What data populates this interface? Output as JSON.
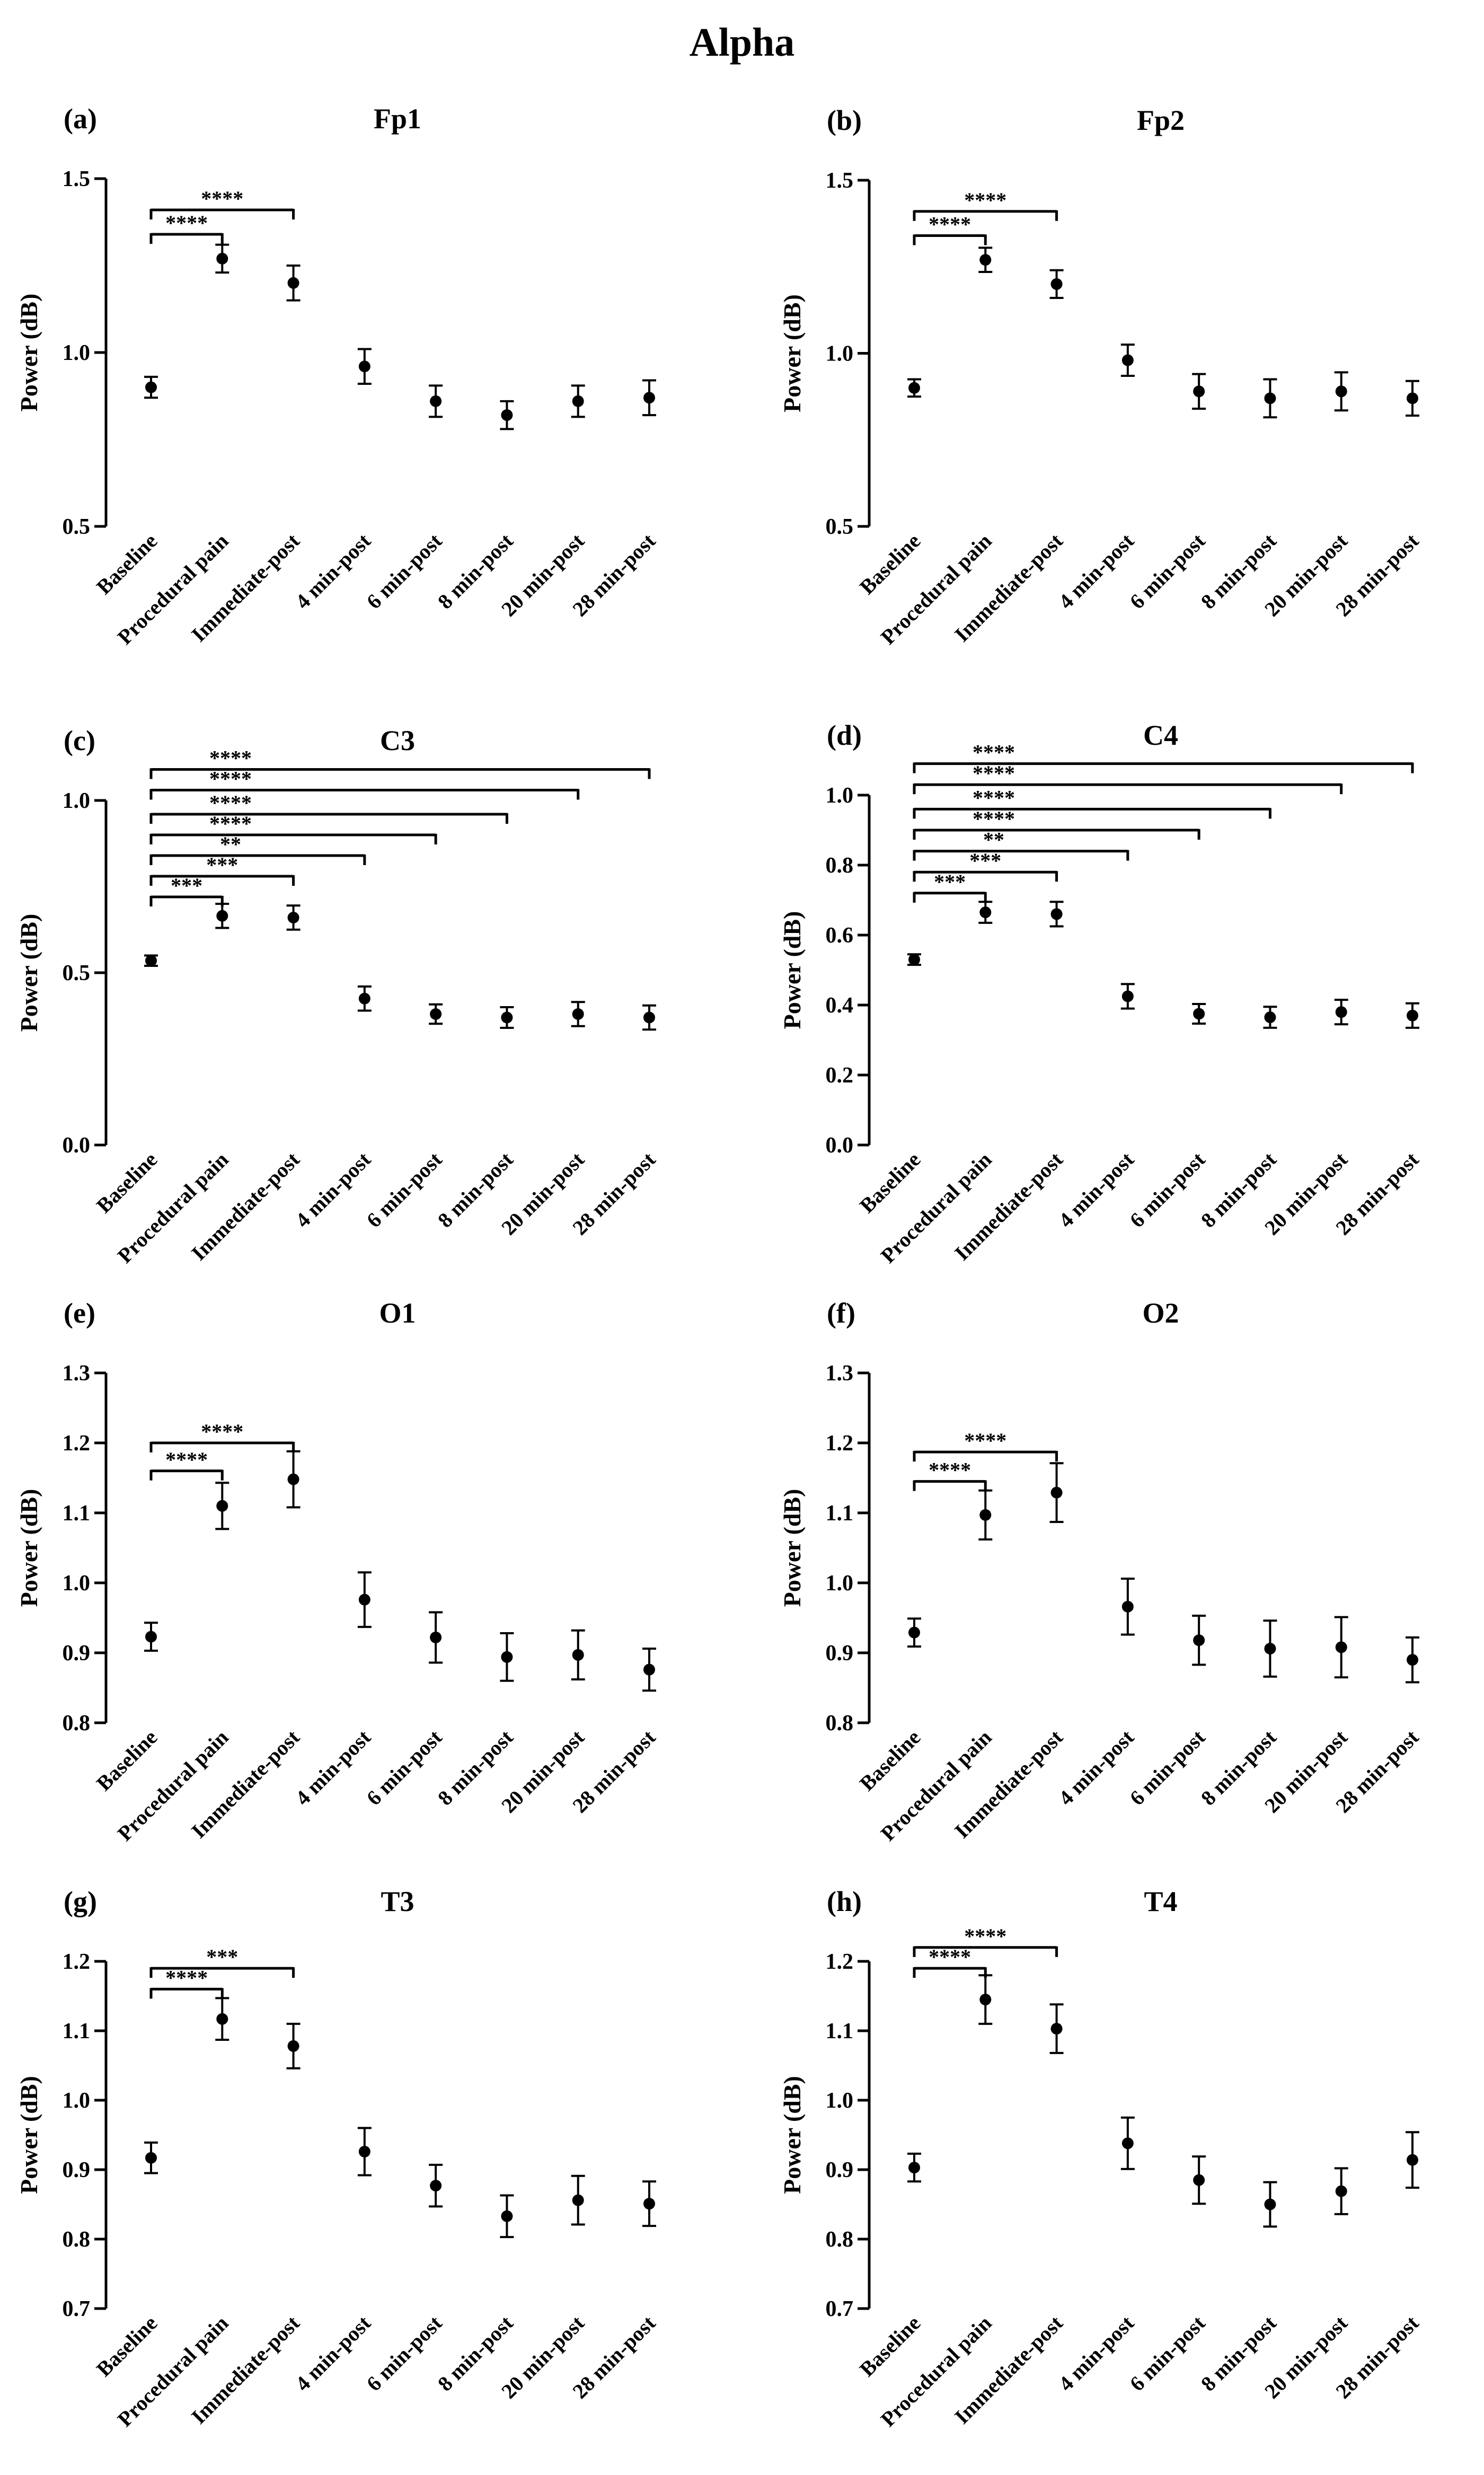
{
  "figure_title": "Alpha",
  "chart_data": [
    {
      "type": "scatter",
      "panel": "(a)",
      "title": "Fp1",
      "ylabel": "Power (dB)",
      "ylim": [
        0.5,
        1.5
      ],
      "yticks": [
        0.5,
        1.0,
        1.5
      ],
      "ytick_labels": [
        "0.5",
        "1.0",
        "1.5"
      ],
      "categories": [
        "Baseline",
        "Procedural pain",
        "Immediate-post",
        "4 min-post",
        "6 min-post",
        "8 min-post",
        "20 min-post",
        "28 min-post"
      ],
      "values": [
        0.9,
        1.27,
        1.2,
        0.96,
        0.86,
        0.82,
        0.86,
        0.87
      ],
      "errors": [
        0.03,
        0.04,
        0.05,
        0.05,
        0.045,
        0.04,
        0.045,
        0.05
      ],
      "significance": [
        {
          "from": "Baseline",
          "to": "Procedural pain",
          "y": 1.34,
          "label": "****"
        },
        {
          "from": "Baseline",
          "to": "Immediate-post",
          "y": 1.41,
          "label": "****"
        }
      ]
    },
    {
      "type": "scatter",
      "panel": "(b)",
      "title": "Fp2",
      "ylabel": "Power (dB)",
      "ylim": [
        0.5,
        1.5
      ],
      "yticks": [
        0.5,
        1.0,
        1.5
      ],
      "ytick_labels": [
        "0.5",
        "1.0",
        "1.5"
      ],
      "categories": [
        "Baseline",
        "Procedural pain",
        "Immediate-post",
        "4 min-post",
        "6 min-post",
        "8 min-post",
        "20 min-post",
        "28 min-post"
      ],
      "values": [
        0.9,
        1.27,
        1.2,
        0.98,
        0.89,
        0.87,
        0.89,
        0.87
      ],
      "errors": [
        0.025,
        0.035,
        0.04,
        0.045,
        0.05,
        0.055,
        0.055,
        0.05
      ],
      "significance": [
        {
          "from": "Baseline",
          "to": "Procedural pain",
          "y": 1.34,
          "label": "****"
        },
        {
          "from": "Baseline",
          "to": "Immediate-post",
          "y": 1.41,
          "label": "****"
        }
      ]
    },
    {
      "type": "scatter",
      "panel": "(c)",
      "title": "C3",
      "ylabel": "Power (dB)",
      "ylim": [
        0.0,
        1.0
      ],
      "yticks": [
        0.0,
        0.5,
        1.0
      ],
      "ytick_labels": [
        "0.0",
        "0.5",
        "1.0"
      ],
      "categories": [
        "Baseline",
        "Procedural pain",
        "Immediate-post",
        "4 min-post",
        "6 min-post",
        "8 min-post",
        "20 min-post",
        "28 min-post"
      ],
      "values": [
        0.535,
        0.665,
        0.66,
        0.425,
        0.38,
        0.37,
        0.38,
        0.37
      ],
      "errors": [
        0.015,
        0.035,
        0.035,
        0.035,
        0.028,
        0.03,
        0.035,
        0.035
      ],
      "significance": [
        {
          "from": "Baseline",
          "to": "Procedural pain",
          "y": 0.72,
          "label": "***"
        },
        {
          "from": "Baseline",
          "to": "Immediate-post",
          "y": 0.78,
          "label": "***"
        },
        {
          "from": "Baseline",
          "to": "4 min-post",
          "y": 0.84,
          "label": "**"
        },
        {
          "from": "Baseline",
          "to": "6 min-post",
          "y": 0.9,
          "label": "****"
        },
        {
          "from": "Baseline",
          "to": "8 min-post",
          "y": 0.96,
          "label": "****"
        },
        {
          "from": "Baseline",
          "to": "20 min-post",
          "y": 1.03,
          "label": "****"
        },
        {
          "from": "Baseline",
          "to": "28 min-post",
          "y": 1.09,
          "label": "****"
        }
      ]
    },
    {
      "type": "scatter",
      "panel": "(d)",
      "title": "C4",
      "ylabel": "Power (dB)",
      "ylim": [
        0.0,
        1.0
      ],
      "yticks": [
        0.0,
        0.2,
        0.4,
        0.6,
        0.8,
        1.0
      ],
      "ytick_labels": [
        "0.0",
        "0.2",
        "0.4",
        "0.6",
        "0.8",
        "1.0"
      ],
      "categories": [
        "Baseline",
        "Procedural pain",
        "Immediate-post",
        "4 min-post",
        "6 min-post",
        "8 min-post",
        "20 min-post",
        "28 min-post"
      ],
      "values": [
        0.53,
        0.665,
        0.66,
        0.425,
        0.375,
        0.365,
        0.38,
        0.37
      ],
      "errors": [
        0.015,
        0.03,
        0.035,
        0.035,
        0.028,
        0.03,
        0.035,
        0.035
      ],
      "significance": [
        {
          "from": "Baseline",
          "to": "Procedural pain",
          "y": 0.72,
          "label": "***"
        },
        {
          "from": "Baseline",
          "to": "Immediate-post",
          "y": 0.78,
          "label": "***"
        },
        {
          "from": "Baseline",
          "to": "4 min-post",
          "y": 0.84,
          "label": "**"
        },
        {
          "from": "Baseline",
          "to": "6 min-post",
          "y": 0.9,
          "label": "****"
        },
        {
          "from": "Baseline",
          "to": "8 min-post",
          "y": 0.96,
          "label": "****"
        },
        {
          "from": "Baseline",
          "to": "20 min-post",
          "y": 1.03,
          "label": "****"
        },
        {
          "from": "Baseline",
          "to": "28 min-post",
          "y": 1.09,
          "label": "****"
        }
      ]
    },
    {
      "type": "scatter",
      "panel": "(e)",
      "title": "O1",
      "ylabel": "Power (dB)",
      "ylim": [
        0.8,
        1.3
      ],
      "yticks": [
        0.8,
        0.9,
        1.0,
        1.1,
        1.2,
        1.3
      ],
      "ytick_labels": [
        "0.8",
        "0.9",
        "1.0",
        "1.1",
        "1.2",
        "1.3"
      ],
      "categories": [
        "Baseline",
        "Procedural pain",
        "Immediate-post",
        "4 min-post",
        "6 min-post",
        "8 min-post",
        "20 min-post",
        "28 min-post"
      ],
      "values": [
        0.923,
        1.11,
        1.148,
        0.976,
        0.922,
        0.894,
        0.897,
        0.876
      ],
      "errors": [
        0.02,
        0.033,
        0.04,
        0.039,
        0.036,
        0.034,
        0.035,
        0.03
      ],
      "significance": [
        {
          "from": "Baseline",
          "to": "Procedural pain",
          "y": 1.16,
          "label": "****"
        },
        {
          "from": "Baseline",
          "to": "Immediate-post",
          "y": 1.2,
          "label": "****"
        }
      ]
    },
    {
      "type": "scatter",
      "panel": "(f)",
      "title": "O2",
      "ylabel": "Power (dB)",
      "ylim": [
        0.8,
        1.3
      ],
      "yticks": [
        0.8,
        0.9,
        1.0,
        1.1,
        1.2,
        1.3
      ],
      "ytick_labels": [
        "0.8",
        "0.9",
        "1.0",
        "1.1",
        "1.2",
        "1.3"
      ],
      "categories": [
        "Baseline",
        "Procedural pain",
        "Immediate-post",
        "4 min-post",
        "6 min-post",
        "8 min-post",
        "20 min-post",
        "28 min-post"
      ],
      "values": [
        0.929,
        1.097,
        1.129,
        0.966,
        0.918,
        0.906,
        0.908,
        0.89
      ],
      "errors": [
        0.02,
        0.035,
        0.042,
        0.04,
        0.035,
        0.04,
        0.043,
        0.032
      ],
      "significance": [
        {
          "from": "Baseline",
          "to": "Procedural pain",
          "y": 1.145,
          "label": "****"
        },
        {
          "from": "Baseline",
          "to": "Immediate-post",
          "y": 1.187,
          "label": "****"
        }
      ]
    },
    {
      "type": "scatter",
      "panel": "(g)",
      "title": "T3",
      "ylabel": "Power (dB)",
      "ylim": [
        0.7,
        1.2
      ],
      "yticks": [
        0.7,
        0.8,
        0.9,
        1.0,
        1.1,
        1.2
      ],
      "ytick_labels": [
        "0.7",
        "0.8",
        "0.9",
        "1.0",
        "1.1",
        "1.2"
      ],
      "categories": [
        "Baseline",
        "Procedural pain",
        "Immediate-post",
        "4 min-post",
        "6 min-post",
        "8 min-post",
        "20 min-post",
        "28 min-post"
      ],
      "values": [
        0.917,
        1.117,
        1.078,
        0.926,
        0.877,
        0.833,
        0.856,
        0.851
      ],
      "errors": [
        0.022,
        0.03,
        0.032,
        0.034,
        0.03,
        0.03,
        0.035,
        0.032
      ],
      "significance": [
        {
          "from": "Baseline",
          "to": "Procedural pain",
          "y": 1.16,
          "label": "****"
        },
        {
          "from": "Baseline",
          "to": "Immediate-post",
          "y": 1.19,
          "label": "***"
        }
      ]
    },
    {
      "type": "scatter",
      "panel": "(h)",
      "title": "T4",
      "ylabel": "Power (dB)",
      "ylim": [
        0.7,
        1.2
      ],
      "yticks": [
        0.7,
        0.8,
        0.9,
        1.0,
        1.1,
        1.2
      ],
      "ytick_labels": [
        "0.7",
        "0.8",
        "0.9",
        "1.0",
        "1.1",
        "1.2"
      ],
      "categories": [
        "Baseline",
        "Procedural pain",
        "Immediate-post",
        "4 min-post",
        "6 min-post",
        "8 min-post",
        "20 min-post",
        "28 min-post"
      ],
      "values": [
        0.903,
        1.145,
        1.103,
        0.938,
        0.885,
        0.85,
        0.869,
        0.914
      ],
      "errors": [
        0.02,
        0.035,
        0.035,
        0.037,
        0.034,
        0.032,
        0.033,
        0.04
      ],
      "significance": [
        {
          "from": "Baseline",
          "to": "Procedural pain",
          "y": 1.19,
          "label": "****"
        },
        {
          "from": "Baseline",
          "to": "Immediate-post",
          "y": 1.22,
          "label": "****"
        }
      ]
    }
  ]
}
